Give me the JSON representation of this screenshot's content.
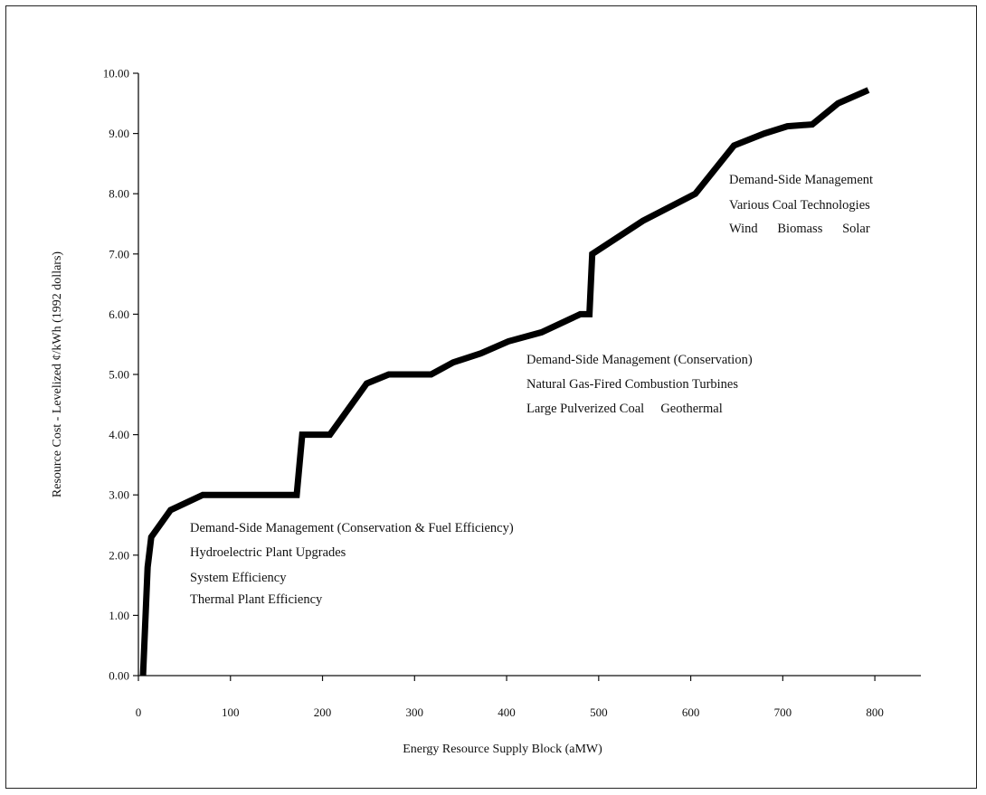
{
  "chart_data": {
    "type": "line",
    "title": "",
    "xlabel": "Energy Resource Supply Block (aMW)",
    "ylabel": "Resource Cost - Levelized ¢/kWh (1992 dollars)",
    "xlim": [
      0,
      850
    ],
    "ylim": [
      0,
      10
    ],
    "x_ticks": [
      0,
      100,
      200,
      300,
      400,
      500,
      600,
      700,
      800
    ],
    "x_tick_labels": [
      "0",
      "100",
      "200",
      "300",
      "400",
      "500",
      "600",
      "700",
      "800"
    ],
    "y_ticks": [
      0,
      1,
      2,
      3,
      4,
      5,
      6,
      7,
      8,
      9,
      10
    ],
    "y_tick_labels": [
      "0.00",
      "1.00",
      "2.00",
      "3.00",
      "4.00",
      "5.00",
      "6.00",
      "7.00",
      "8.00",
      "9.00",
      "10.00"
    ],
    "grid": false,
    "series": [
      {
        "x": [
          5,
          10,
          14,
          35,
          70,
          100,
          150,
          172,
          178,
          208,
          248,
          272,
          318,
          342,
          372,
          402,
          438,
          480,
          490,
          493,
          548,
          605,
          647,
          680,
          705,
          732,
          760,
          793
        ],
        "y": [
          0,
          1.8,
          2.3,
          2.75,
          3,
          3,
          3,
          3,
          4,
          4,
          4.85,
          5,
          5,
          5.2,
          5.35,
          5.55,
          5.7,
          6,
          6,
          7,
          7.55,
          8,
          8.8,
          9,
          9.12,
          9.15,
          9.5,
          9.72
        ]
      }
    ],
    "annotations": [
      {
        "id": "low",
        "lines": [
          "Demand-Side Management (Conservation & Fuel Efficiency)",
          "Hydroelectric Plant Upgrades",
          "System Efficiency",
          "Thermal Plant Efficiency"
        ]
      },
      {
        "id": "mid",
        "lines": [
          "Demand-Side Management (Conservation)",
          "Natural Gas-Fired Combustion Turbines",
          "Large Pulverized Coal     Geothermal"
        ]
      },
      {
        "id": "high",
        "lines": [
          "Demand-Side Management",
          "Various Coal Technologies",
          "Wind      Biomass      Solar"
        ]
      }
    ]
  }
}
